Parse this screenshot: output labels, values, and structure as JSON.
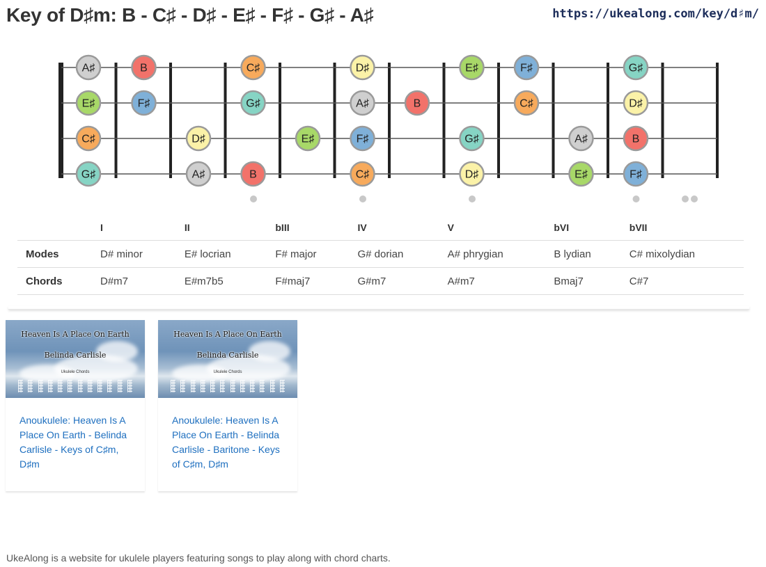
{
  "page": {
    "title": "Key of D♯m: B - C♯ - D♯ - E♯ - F♯ - G♯ - A♯",
    "url": "https://ukealong.com/key/d♯m/"
  },
  "fretboard": {
    "strings": [
      "A",
      "E",
      "C",
      "G"
    ],
    "fret_count": 12,
    "position_marker_frets": [
      3,
      5,
      7,
      10,
      12
    ],
    "note_colors": {
      "A♯": "#cfcfcf",
      "B": "#f2726a",
      "C♯": "#f7aa5c",
      "D♯": "#fbf2a8",
      "E♯": "#a8d868",
      "F♯": "#7fb0d8",
      "G♯": "#86d4c4"
    },
    "notes": [
      {
        "string": 0,
        "fret": 0,
        "name": "A♯"
      },
      {
        "string": 0,
        "fret": 1,
        "name": "B"
      },
      {
        "string": 0,
        "fret": 3,
        "name": "C♯"
      },
      {
        "string": 0,
        "fret": 5,
        "name": "D♯"
      },
      {
        "string": 0,
        "fret": 7,
        "name": "E♯"
      },
      {
        "string": 0,
        "fret": 8,
        "name": "F♯"
      },
      {
        "string": 0,
        "fret": 10,
        "name": "G♯"
      },
      {
        "string": 1,
        "fret": 0,
        "name": "E♯"
      },
      {
        "string": 1,
        "fret": 1,
        "name": "F♯"
      },
      {
        "string": 1,
        "fret": 3,
        "name": "G♯"
      },
      {
        "string": 1,
        "fret": 5,
        "name": "A♯"
      },
      {
        "string": 1,
        "fret": 6,
        "name": "B"
      },
      {
        "string": 1,
        "fret": 8,
        "name": "C♯"
      },
      {
        "string": 1,
        "fret": 10,
        "name": "D♯"
      },
      {
        "string": 2,
        "fret": 0,
        "name": "C♯"
      },
      {
        "string": 2,
        "fret": 2,
        "name": "D♯"
      },
      {
        "string": 2,
        "fret": 4,
        "name": "E♯"
      },
      {
        "string": 2,
        "fret": 5,
        "name": "F♯"
      },
      {
        "string": 2,
        "fret": 7,
        "name": "G♯"
      },
      {
        "string": 2,
        "fret": 9,
        "name": "A♯"
      },
      {
        "string": 2,
        "fret": 10,
        "name": "B"
      },
      {
        "string": 3,
        "fret": 0,
        "name": "G♯"
      },
      {
        "string": 3,
        "fret": 2,
        "name": "A♯"
      },
      {
        "string": 3,
        "fret": 3,
        "name": "B"
      },
      {
        "string": 3,
        "fret": 5,
        "name": "C♯"
      },
      {
        "string": 3,
        "fret": 7,
        "name": "D♯"
      },
      {
        "string": 3,
        "fret": 9,
        "name": "E♯"
      },
      {
        "string": 3,
        "fret": 10,
        "name": "F♯"
      }
    ]
  },
  "table": {
    "headers": [
      "",
      "I",
      "II",
      "bIII",
      "IV",
      "V",
      "bVI",
      "bVII"
    ],
    "modes": {
      "label": "Modes",
      "values": [
        "D# minor",
        "E# locrian",
        "F# major",
        "G# dorian",
        "A# phrygian",
        "B lydian",
        "C# mixolydian"
      ]
    },
    "chords": {
      "label": "Chords",
      "values": [
        "D#m7",
        "E#m7b5",
        "F#maj7",
        "G#m7",
        "A#m7",
        "Bmaj7",
        "C#7"
      ]
    }
  },
  "videos": [
    {
      "thumb_title": "Heaven Is A Place On Earth",
      "thumb_artist": "Belinda Carlisle",
      "thumb_sub": "Ukulele Chords",
      "link_text": "Anoukulele: Heaven Is A Place On Earth - Belinda Carlisle - Keys of C♯m, D♯m"
    },
    {
      "thumb_title": "Heaven Is A Place On Earth",
      "thumb_artist": "Belinda Carlisle",
      "thumb_sub": "Ukulele Chords",
      "link_text": "Anoukulele: Heaven Is A Place On Earth - Belinda Carlisle - Baritone - Keys of C♯m, D♯m"
    }
  ],
  "footer": {
    "text": "UkeAlong is a website for ukulele players featuring songs to play along with chord charts."
  }
}
